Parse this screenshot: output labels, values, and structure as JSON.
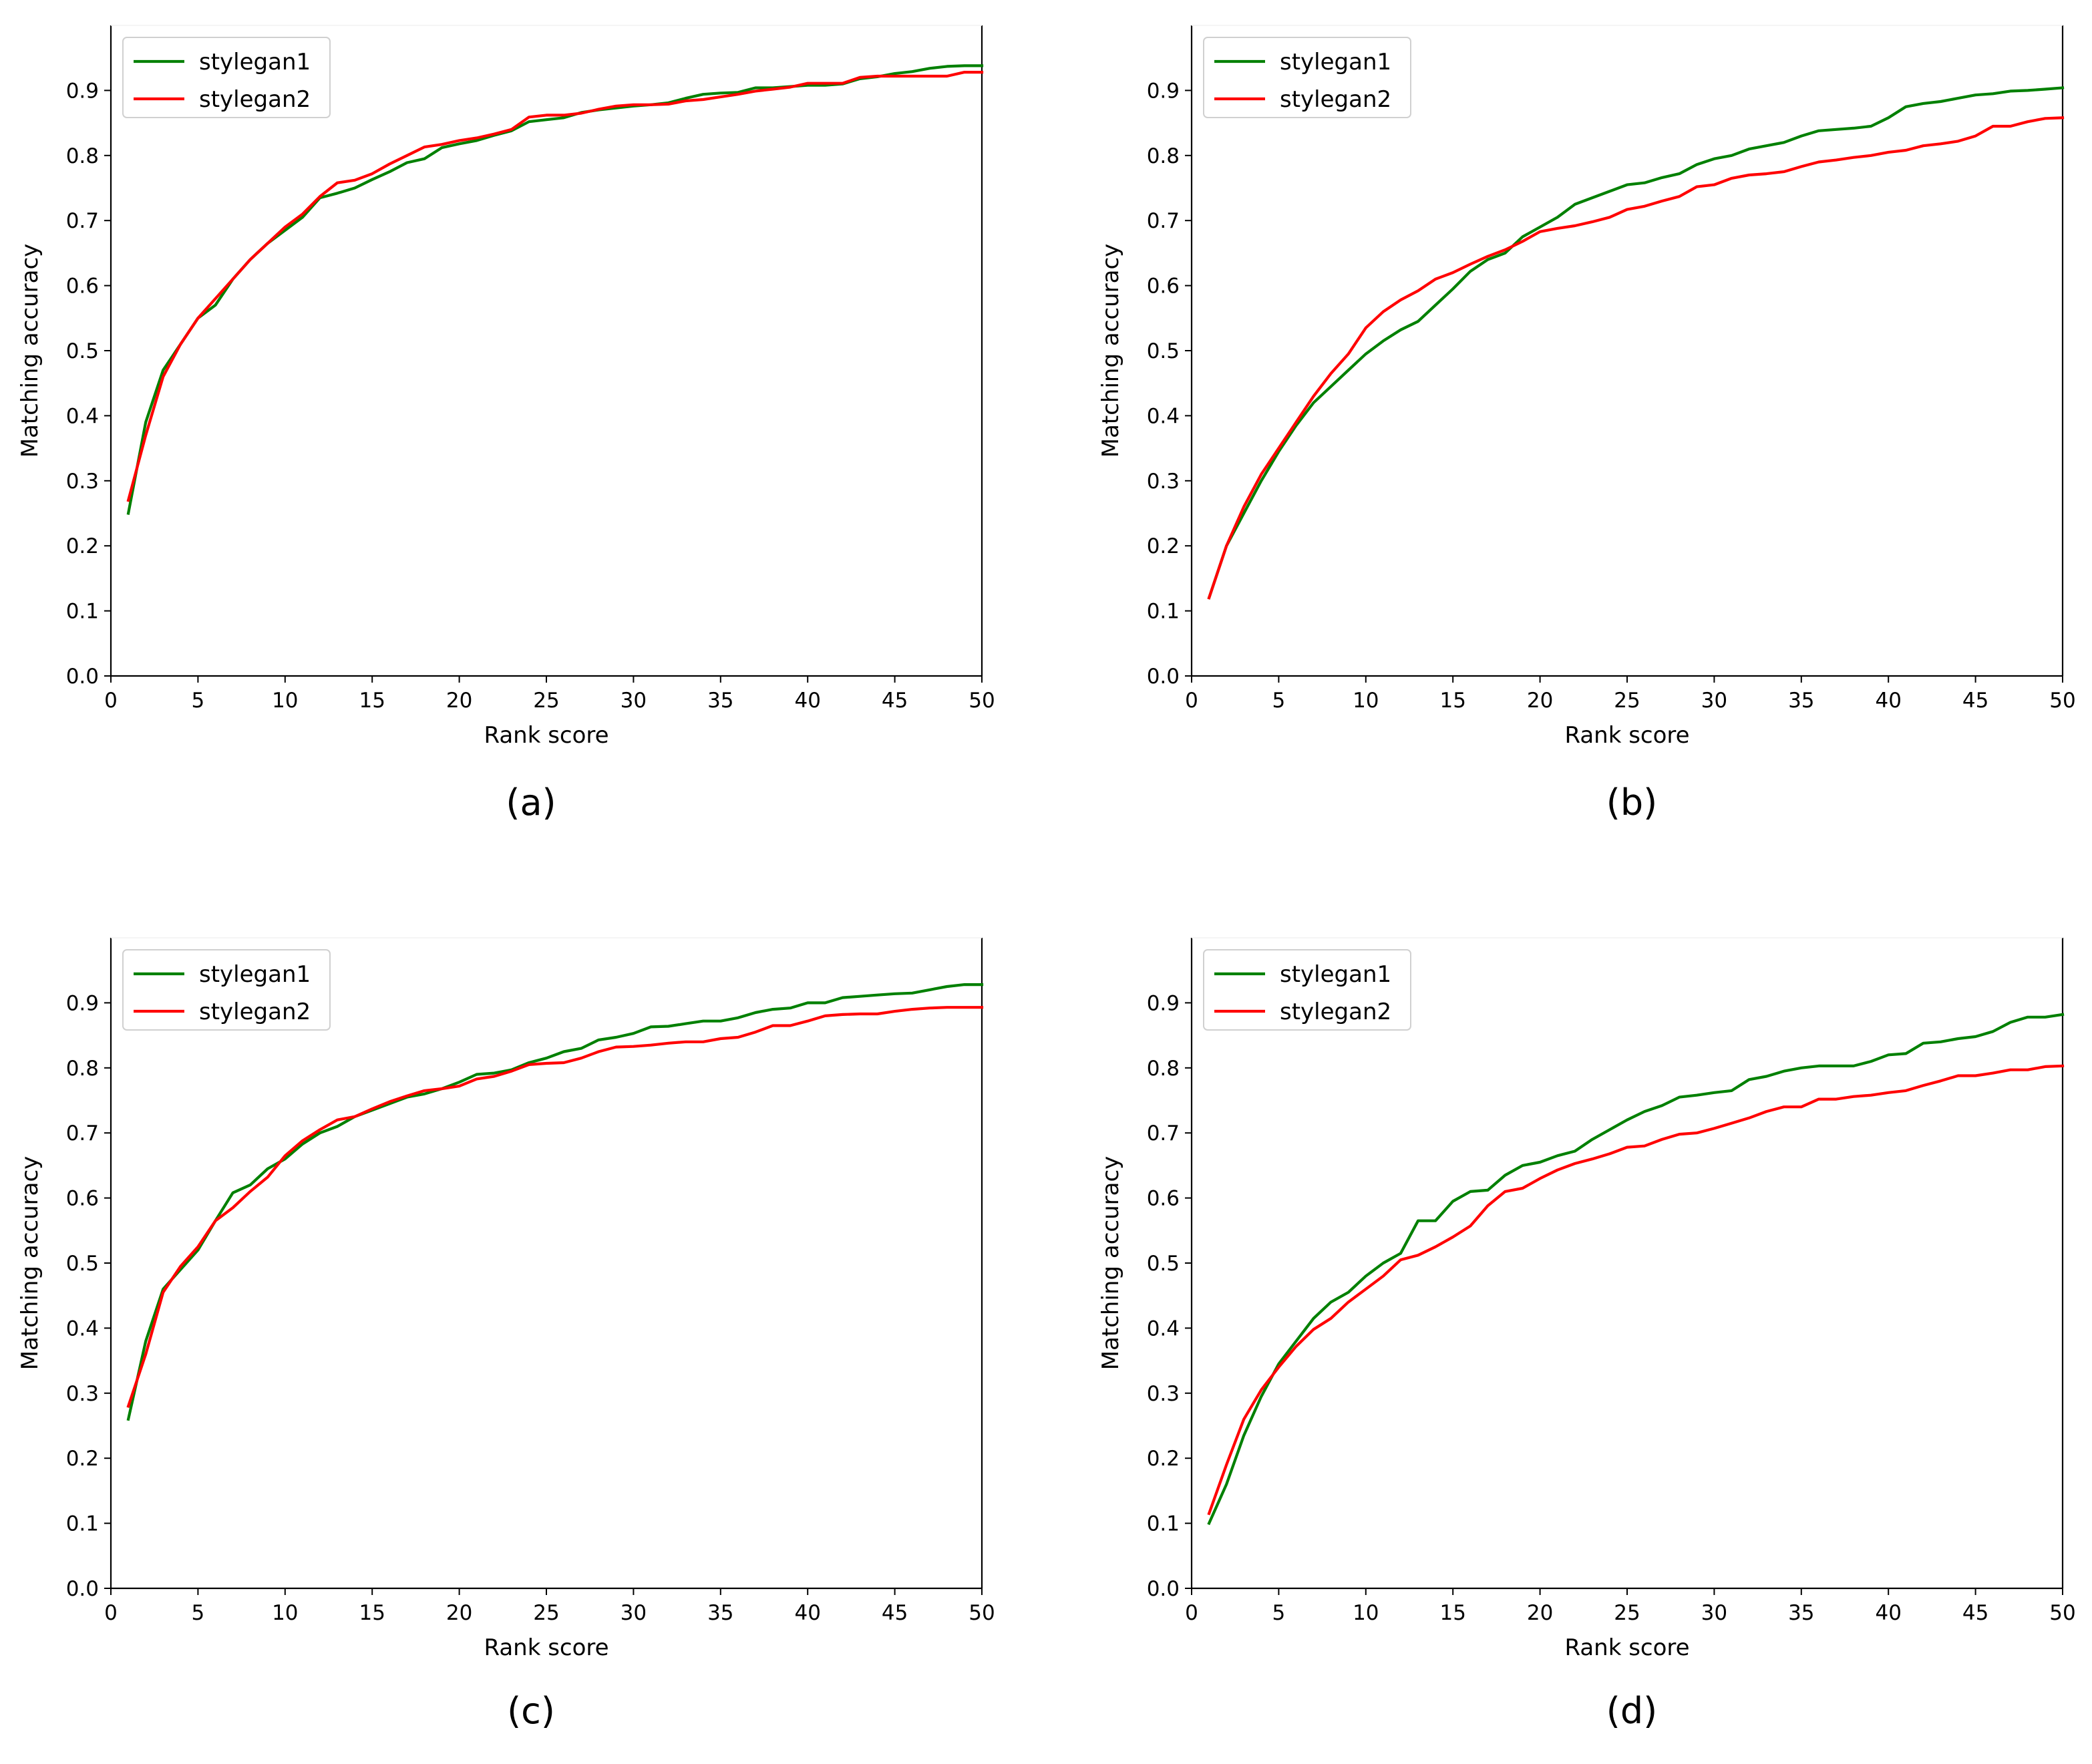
{
  "figure": {
    "panels": [
      "(a)",
      "(b)",
      "(c)",
      "(d)"
    ]
  },
  "chart_data": [
    {
      "type": "line",
      "caption": "(a)",
      "xlabel": "Rank score",
      "ylabel": "Matching accuracy",
      "xlim": [
        0,
        50
      ],
      "ylim": [
        0,
        1.0
      ],
      "xticks": [
        0,
        5,
        10,
        15,
        20,
        25,
        30,
        35,
        40,
        45,
        50
      ],
      "yticks": [
        0.0,
        0.1,
        0.2,
        0.3,
        0.4,
        0.5,
        0.6,
        0.7,
        0.8,
        0.9
      ],
      "legend": "upper left",
      "x": [
        1,
        2,
        3,
        4,
        5,
        6,
        7,
        8,
        9,
        10,
        11,
        12,
        13,
        14,
        15,
        16,
        17,
        18,
        19,
        20,
        21,
        22,
        23,
        24,
        25,
        26,
        27,
        28,
        29,
        30,
        31,
        32,
        33,
        34,
        35,
        36,
        37,
        38,
        39,
        40,
        41,
        42,
        43,
        44,
        45,
        46,
        47,
        48,
        49,
        50
      ],
      "series": [
        {
          "name": "stylegan1",
          "color": "#008000",
          "values": [
            0.25,
            0.39,
            0.47,
            0.51,
            0.55,
            0.57,
            0.61,
            0.64,
            0.665,
            0.685,
            0.705,
            0.735,
            0.742,
            0.75,
            0.763,
            0.775,
            0.789,
            0.795,
            0.812,
            0.818,
            0.823,
            0.831,
            0.838,
            0.852,
            0.855,
            0.858,
            0.866,
            0.87,
            0.873,
            0.876,
            0.878,
            0.881,
            0.888,
            0.894,
            0.896,
            0.897,
            0.904,
            0.904,
            0.906,
            0.908,
            0.908,
            0.91,
            0.918,
            0.921,
            0.926,
            0.929,
            0.934,
            0.937,
            0.938,
            0.938
          ]
        },
        {
          "name": "stylegan2",
          "color": "#ff0000",
          "values": [
            0.27,
            0.37,
            0.46,
            0.51,
            0.55,
            0.58,
            0.61,
            0.64,
            0.665,
            0.69,
            0.71,
            0.737,
            0.758,
            0.762,
            0.772,
            0.787,
            0.8,
            0.813,
            0.817,
            0.823,
            0.827,
            0.833,
            0.84,
            0.859,
            0.862,
            0.862,
            0.865,
            0.871,
            0.876,
            0.878,
            0.878,
            0.879,
            0.884,
            0.886,
            0.89,
            0.894,
            0.899,
            0.902,
            0.905,
            0.911,
            0.911,
            0.911,
            0.92,
            0.922,
            0.922,
            0.922,
            0.922,
            0.922,
            0.928,
            0.928
          ]
        }
      ]
    },
    {
      "type": "line",
      "caption": "(b)",
      "xlabel": "Rank score",
      "ylabel": "Matching accuracy",
      "xlim": [
        0,
        50
      ],
      "ylim": [
        0,
        1.0
      ],
      "xticks": [
        0,
        5,
        10,
        15,
        20,
        25,
        30,
        35,
        40,
        45,
        50
      ],
      "yticks": [
        0.0,
        0.1,
        0.2,
        0.3,
        0.4,
        0.5,
        0.6,
        0.7,
        0.8,
        0.9
      ],
      "legend": "upper left",
      "x": [
        1,
        2,
        3,
        4,
        5,
        6,
        7,
        8,
        9,
        10,
        11,
        12,
        13,
        14,
        15,
        16,
        17,
        18,
        19,
        20,
        21,
        22,
        23,
        24,
        25,
        26,
        27,
        28,
        29,
        30,
        31,
        32,
        33,
        34,
        35,
        36,
        37,
        38,
        39,
        40,
        41,
        42,
        43,
        44,
        45,
        46,
        47,
        48,
        49,
        50
      ],
      "series": [
        {
          "name": "stylegan1",
          "color": "#008000",
          "values": [
            0.12,
            0.2,
            0.25,
            0.3,
            0.345,
            0.385,
            0.42,
            0.445,
            0.47,
            0.495,
            0.515,
            0.532,
            0.545,
            0.57,
            0.595,
            0.622,
            0.64,
            0.65,
            0.675,
            0.69,
            0.705,
            0.725,
            0.735,
            0.745,
            0.755,
            0.758,
            0.766,
            0.772,
            0.786,
            0.795,
            0.8,
            0.81,
            0.815,
            0.82,
            0.83,
            0.838,
            0.84,
            0.842,
            0.845,
            0.858,
            0.875,
            0.88,
            0.883,
            0.888,
            0.893,
            0.895,
            0.899,
            0.9,
            0.902,
            0.904
          ]
        },
        {
          "name": "stylegan2",
          "color": "#ff0000",
          "values": [
            0.12,
            0.2,
            0.26,
            0.31,
            0.35,
            0.39,
            0.43,
            0.465,
            0.495,
            0.535,
            0.56,
            0.578,
            0.592,
            0.61,
            0.62,
            0.633,
            0.645,
            0.655,
            0.668,
            0.683,
            0.688,
            0.692,
            0.698,
            0.705,
            0.717,
            0.722,
            0.73,
            0.737,
            0.752,
            0.755,
            0.765,
            0.77,
            0.772,
            0.775,
            0.783,
            0.79,
            0.793,
            0.797,
            0.8,
            0.805,
            0.808,
            0.815,
            0.818,
            0.822,
            0.83,
            0.845,
            0.845,
            0.852,
            0.857,
            0.858
          ]
        }
      ]
    },
    {
      "type": "line",
      "caption": "(c)",
      "xlabel": "Rank score",
      "ylabel": "Matching accuracy",
      "xlim": [
        0,
        50
      ],
      "ylim": [
        0,
        1.0
      ],
      "xticks": [
        0,
        5,
        10,
        15,
        20,
        25,
        30,
        35,
        40,
        45,
        50
      ],
      "yticks": [
        0.0,
        0.1,
        0.2,
        0.3,
        0.4,
        0.5,
        0.6,
        0.7,
        0.8,
        0.9
      ],
      "legend": "upper left",
      "x": [
        1,
        2,
        3,
        4,
        5,
        6,
        7,
        8,
        9,
        10,
        11,
        12,
        13,
        14,
        15,
        16,
        17,
        18,
        19,
        20,
        21,
        22,
        23,
        24,
        25,
        26,
        27,
        28,
        29,
        30,
        31,
        32,
        33,
        34,
        35,
        36,
        37,
        38,
        39,
        40,
        41,
        42,
        43,
        44,
        45,
        46,
        47,
        48,
        49,
        50
      ],
      "series": [
        {
          "name": "stylegan1",
          "color": "#008000",
          "values": [
            0.26,
            0.38,
            0.46,
            0.49,
            0.52,
            0.565,
            0.608,
            0.62,
            0.645,
            0.66,
            0.683,
            0.7,
            0.71,
            0.725,
            0.735,
            0.745,
            0.755,
            0.76,
            0.768,
            0.778,
            0.79,
            0.792,
            0.797,
            0.808,
            0.815,
            0.825,
            0.83,
            0.843,
            0.847,
            0.853,
            0.863,
            0.864,
            0.868,
            0.872,
            0.872,
            0.877,
            0.885,
            0.89,
            0.892,
            0.9,
            0.9,
            0.908,
            0.91,
            0.912,
            0.914,
            0.915,
            0.92,
            0.925,
            0.928,
            0.928
          ]
        },
        {
          "name": "stylegan2",
          "color": "#ff0000",
          "values": [
            0.28,
            0.36,
            0.455,
            0.495,
            0.525,
            0.565,
            0.585,
            0.61,
            0.632,
            0.665,
            0.688,
            0.705,
            0.72,
            0.725,
            0.737,
            0.748,
            0.757,
            0.765,
            0.768,
            0.772,
            0.783,
            0.787,
            0.795,
            0.805,
            0.807,
            0.808,
            0.815,
            0.825,
            0.832,
            0.833,
            0.835,
            0.838,
            0.84,
            0.84,
            0.845,
            0.847,
            0.855,
            0.865,
            0.865,
            0.872,
            0.88,
            0.882,
            0.883,
            0.883,
            0.887,
            0.89,
            0.892,
            0.893,
            0.893,
            0.893
          ]
        }
      ]
    },
    {
      "type": "line",
      "caption": "(d)",
      "xlabel": "Rank score",
      "ylabel": "Matching accuracy",
      "xlim": [
        0,
        50
      ],
      "ylim": [
        0,
        1.0
      ],
      "xticks": [
        0,
        5,
        10,
        15,
        20,
        25,
        30,
        35,
        40,
        45,
        50
      ],
      "yticks": [
        0.0,
        0.1,
        0.2,
        0.3,
        0.4,
        0.5,
        0.6,
        0.7,
        0.8,
        0.9
      ],
      "legend": "upper left",
      "x": [
        1,
        2,
        3,
        4,
        5,
        6,
        7,
        8,
        9,
        10,
        11,
        12,
        13,
        14,
        15,
        16,
        17,
        18,
        19,
        20,
        21,
        22,
        23,
        24,
        25,
        26,
        27,
        28,
        29,
        30,
        31,
        32,
        33,
        34,
        35,
        36,
        37,
        38,
        39,
        40,
        41,
        42,
        43,
        44,
        45,
        46,
        47,
        48,
        49,
        50
      ],
      "series": [
        {
          "name": "stylegan1",
          "color": "#008000",
          "values": [
            0.1,
            0.16,
            0.235,
            0.295,
            0.345,
            0.38,
            0.415,
            0.44,
            0.455,
            0.48,
            0.5,
            0.515,
            0.565,
            0.565,
            0.595,
            0.61,
            0.612,
            0.635,
            0.65,
            0.655,
            0.665,
            0.672,
            0.69,
            0.705,
            0.72,
            0.733,
            0.742,
            0.755,
            0.758,
            0.762,
            0.765,
            0.782,
            0.787,
            0.795,
            0.8,
            0.803,
            0.803,
            0.803,
            0.81,
            0.82,
            0.822,
            0.838,
            0.84,
            0.845,
            0.848,
            0.856,
            0.87,
            0.878,
            0.878,
            0.882
          ]
        },
        {
          "name": "stylegan2",
          "color": "#ff0000",
          "values": [
            0.115,
            0.19,
            0.26,
            0.305,
            0.34,
            0.372,
            0.398,
            0.415,
            0.44,
            0.46,
            0.48,
            0.505,
            0.512,
            0.525,
            0.54,
            0.557,
            0.588,
            0.61,
            0.615,
            0.63,
            0.643,
            0.653,
            0.66,
            0.668,
            0.678,
            0.68,
            0.69,
            0.698,
            0.7,
            0.707,
            0.715,
            0.723,
            0.733,
            0.74,
            0.74,
            0.752,
            0.752,
            0.756,
            0.758,
            0.762,
            0.765,
            0.773,
            0.78,
            0.788,
            0.788,
            0.792,
            0.797,
            0.797,
            0.802,
            0.803
          ]
        }
      ]
    }
  ]
}
